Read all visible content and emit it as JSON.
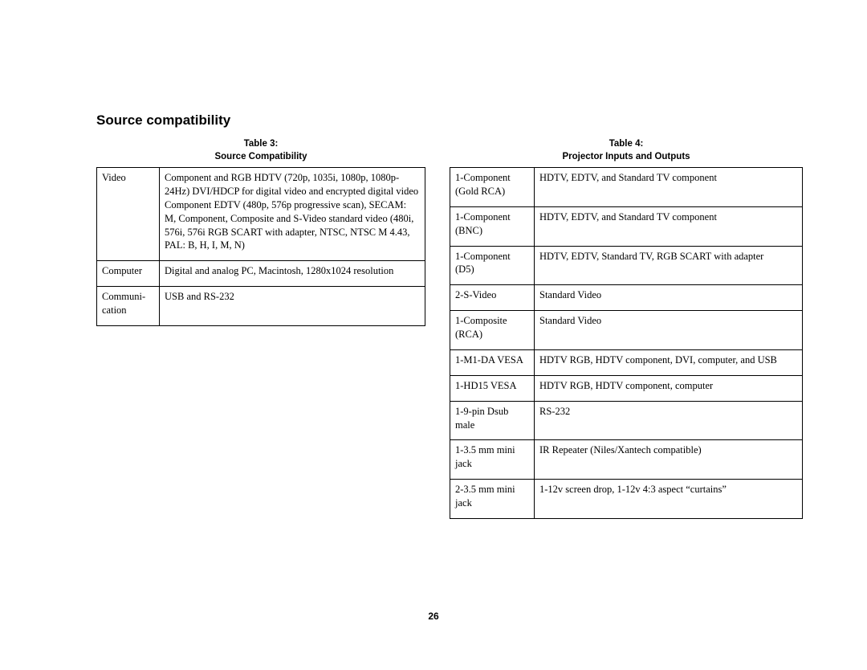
{
  "section_title": "Source compatibility",
  "page_number": "26",
  "table3": {
    "caption_line1": "Table 3:",
    "caption_line2": "Source Compatibility",
    "rows": [
      {
        "c1": "Video",
        "c2": "Component and RGB HDTV (720p, 1035i, 1080p, 1080p-24Hz) DVI/HDCP for digital video and encrypted digital video Component EDTV (480p, 576p progressive scan), SECAM: M, Component, Composite and S-Video standard video (480i, 576i, 576i RGB SCART with adapter, NTSC, NTSC M 4.43,\nPAL: B, H, I, M, N)"
      },
      {
        "c1": "Computer",
        "c2": "Digital and analog PC, Macintosh, 1280x1024 resolution"
      },
      {
        "c1": "Communi-cation",
        "c2": "USB and RS-232"
      }
    ]
  },
  "table4": {
    "caption_line1": "Table 4:",
    "caption_line2": "Projector Inputs and Outputs",
    "rows": [
      {
        "c1": "1-Component (Gold RCA)",
        "c2": "HDTV, EDTV, and Standard TV component"
      },
      {
        "c1": "1-Component (BNC)",
        "c2": "HDTV, EDTV, and Standard TV component"
      },
      {
        "c1": "1-Component (D5)",
        "c2": "HDTV, EDTV, Standard TV, RGB SCART with adapter"
      },
      {
        "c1": "2-S-Video",
        "c2": "Standard Video"
      },
      {
        "c1": "1-Composite (RCA)",
        "c2": "Standard Video"
      },
      {
        "c1": "1-M1-DA VESA",
        "c2": "HDTV RGB, HDTV component, DVI, computer, and USB"
      },
      {
        "c1": "1-HD15 VESA",
        "c2": "HDTV RGB, HDTV component, computer"
      },
      {
        "c1": "1-9-pin Dsub male",
        "c2": "RS-232"
      },
      {
        "c1": "1-3.5 mm mini jack",
        "c2": "IR Repeater (Niles/Xantech compatible)"
      },
      {
        "c1": "2-3.5 mm mini jack",
        "c2": "1-12v screen drop, 1-12v 4:3 aspect “curtains”"
      }
    ]
  }
}
